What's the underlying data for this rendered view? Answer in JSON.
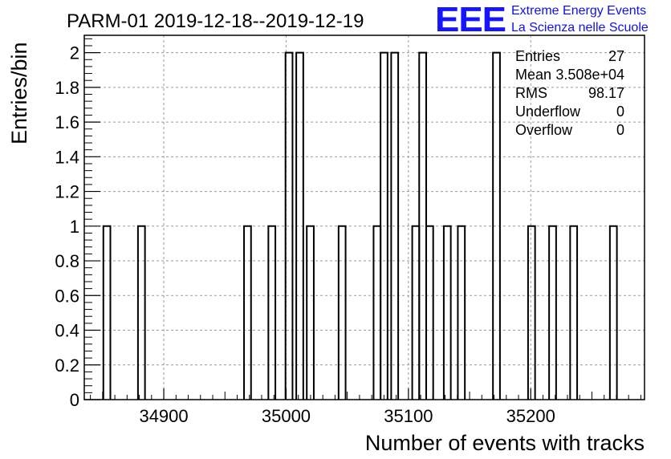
{
  "chart_data": {
    "type": "histogram",
    "title": "PARM-01 2019-12-18--2019-12-19",
    "xlabel": "Number of events with tracks",
    "ylabel": "Entries/bin",
    "xlim": [
      34835,
      35293
    ],
    "ylim": [
      0,
      2.1
    ],
    "bin_width": 5.727,
    "x_ticks": [
      34900,
      35000,
      35100,
      35200
    ],
    "x_tick_labels": [
      "34900",
      "35000",
      "35100",
      "35200"
    ],
    "y_ticks": [
      0,
      0.2,
      0.4,
      0.6,
      0.8,
      1,
      1.2,
      1.4,
      1.6,
      1.8,
      2
    ],
    "y_tick_labels": [
      "0",
      "0.2",
      "0.4",
      "0.6",
      "0.8",
      "1",
      "1.2",
      "1.4",
      "1.6",
      "1.8",
      "2"
    ],
    "grid": true,
    "bins": [
      {
        "x_low": 34850.6,
        "count": 1
      },
      {
        "x_low": 34878.9,
        "count": 1
      },
      {
        "x_low": 34965.6,
        "count": 1
      },
      {
        "x_low": 34985.5,
        "count": 1
      },
      {
        "x_low": 34999.5,
        "count": 2
      },
      {
        "x_low": 35008.3,
        "count": 2
      },
      {
        "x_low": 35016.9,
        "count": 1
      },
      {
        "x_low": 35042.9,
        "count": 1
      },
      {
        "x_low": 35071.5,
        "count": 1
      },
      {
        "x_low": 35077.2,
        "count": 2
      },
      {
        "x_low": 35085.9,
        "count": 2
      },
      {
        "x_low": 35103.1,
        "count": 1
      },
      {
        "x_low": 35108.8,
        "count": 2
      },
      {
        "x_low": 35114.5,
        "count": 1
      },
      {
        "x_low": 35128.9,
        "count": 1
      },
      {
        "x_low": 35140.4,
        "count": 1
      },
      {
        "x_low": 35169.1,
        "count": 2
      },
      {
        "x_low": 35197.8,
        "count": 1
      },
      {
        "x_low": 35215.0,
        "count": 1
      },
      {
        "x_low": 35232.2,
        "count": 1
      },
      {
        "x_low": 35264.7,
        "count": 1
      }
    ],
    "stats": {
      "entries_label": "Entries",
      "entries_value": "27",
      "mean_label": "Mean",
      "mean_value": "3.508e+04",
      "rms_label": "RMS",
      "rms_value": "98.17",
      "underflow_label": "Underflow",
      "underflow_value": "0",
      "overflow_label": "Overflow",
      "overflow_value": "0"
    },
    "logo": {
      "mark": "EEE",
      "line1": "Extreme Energy Events",
      "line2": "La Scienza nelle Scuole"
    }
  }
}
